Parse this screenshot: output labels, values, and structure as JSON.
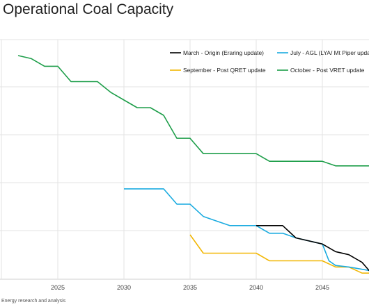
{
  "title": "Operational Coal Capacity",
  "footer": "Energy research and analysis",
  "chart_data": {
    "type": "line",
    "title": "Operational Coal Capacity",
    "xlabel": "",
    "ylabel": "",
    "x_ticks": [
      "2025",
      "2030",
      "2035",
      "2040",
      "2045"
    ],
    "x_range": [
      2021.6,
      2049.2
    ],
    "y_range": [
      0,
      7.3
    ],
    "grid": true,
    "legend_position": "top-right",
    "series": [
      {
        "name": "March - Origin (Eraring update)",
        "color": "#000000",
        "points": [
          [
            2040,
            1.75
          ],
          [
            2042,
            1.75
          ],
          [
            2043,
            1.35
          ],
          [
            2045,
            1.15
          ],
          [
            2046,
            0.9
          ],
          [
            2047,
            0.8
          ],
          [
            2048,
            0.55
          ],
          [
            2049,
            0.05
          ]
        ]
      },
      {
        "name": "July - AGL (LYA/ Mt Piper update)",
        "color": "#1AABE0",
        "points": [
          [
            2030,
            2.95
          ],
          [
            2033,
            2.95
          ],
          [
            2034,
            2.45
          ],
          [
            2035,
            2.45
          ],
          [
            2036,
            2.05
          ],
          [
            2037,
            1.9
          ],
          [
            2038,
            1.75
          ],
          [
            2040,
            1.75
          ],
          [
            2041,
            1.5
          ],
          [
            2042,
            1.5
          ],
          [
            2043,
            1.35
          ],
          [
            2045,
            1.15
          ],
          [
            2045.5,
            0.6
          ],
          [
            2046,
            0.45
          ],
          [
            2047,
            0.4
          ],
          [
            2049,
            0.25
          ]
        ]
      },
      {
        "name": "September - Post QRET update",
        "color": "#F2B705",
        "points": [
          [
            2035,
            1.45
          ],
          [
            2036,
            0.85
          ],
          [
            2040,
            0.85
          ],
          [
            2041,
            0.6
          ],
          [
            2045,
            0.6
          ],
          [
            2046,
            0.4
          ],
          [
            2047,
            0.4
          ],
          [
            2048,
            0.2
          ],
          [
            2049,
            0.2
          ]
        ]
      },
      {
        "name": "October - Post VRET update",
        "color": "#1E9E4A",
        "points": [
          [
            2022,
            7.3
          ],
          [
            2023,
            7.2
          ],
          [
            2024,
            6.95
          ],
          [
            2025,
            6.95
          ],
          [
            2026,
            6.45
          ],
          [
            2028,
            6.45
          ],
          [
            2029,
            6.1
          ],
          [
            2030,
            5.85
          ],
          [
            2031,
            5.6
          ],
          [
            2032,
            5.6
          ],
          [
            2033,
            5.35
          ],
          [
            2034,
            4.6
          ],
          [
            2035,
            4.6
          ],
          [
            2036,
            4.1
          ],
          [
            2040,
            4.1
          ],
          [
            2041,
            3.85
          ],
          [
            2045,
            3.85
          ],
          [
            2046,
            3.7
          ],
          [
            2049,
            3.7
          ]
        ]
      }
    ]
  }
}
